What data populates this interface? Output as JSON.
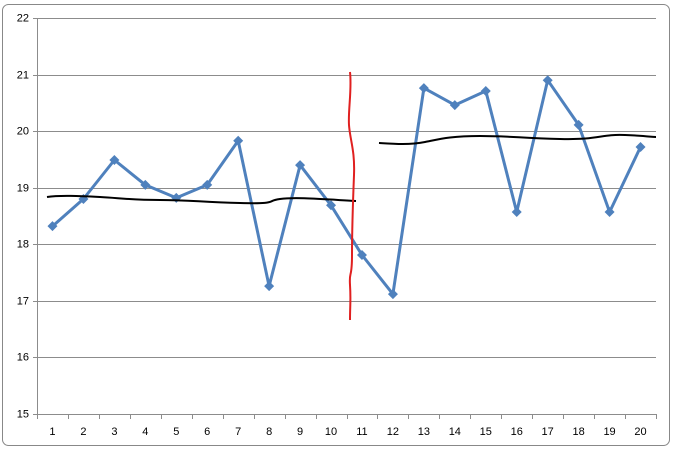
{
  "chart_data": {
    "type": "line",
    "categories": [
      "1",
      "2",
      "3",
      "4",
      "5",
      "6",
      "7",
      "8",
      "9",
      "10",
      "11",
      "12",
      "13",
      "14",
      "15",
      "16",
      "17",
      "18",
      "19",
      "20"
    ],
    "values": [
      18.32,
      18.8,
      19.49,
      19.05,
      18.82,
      19.05,
      19.83,
      17.26,
      19.4,
      18.69,
      17.81,
      17.12,
      20.76,
      20.46,
      20.71,
      18.57,
      20.9,
      20.11,
      18.57,
      19.72
    ],
    "color": "#4f81bd",
    "ylim": [
      15,
      22
    ],
    "yticks": [
      15,
      16,
      17,
      18,
      19,
      20,
      21,
      22
    ],
    "grid": true
  }
}
